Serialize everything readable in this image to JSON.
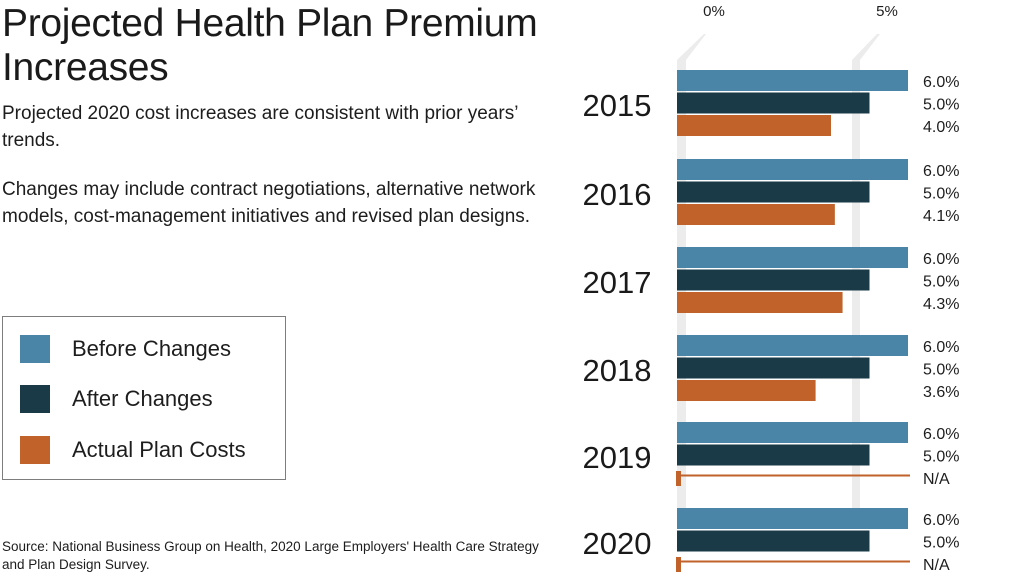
{
  "header": {
    "title": "Projected Health Plan Premium Increases",
    "para1": "Projected 2020 cost increases are consistent with prior years’ trends.",
    "para2": "Changes may include contract negotiations, alternative network models, cost-management initiatives and revised plan designs."
  },
  "legend": {
    "items": [
      {
        "label": "Before Changes",
        "color": "#4a84a6"
      },
      {
        "label": "After Changes",
        "color": "#1a3a47"
      },
      {
        "label": "Actual Plan Costs",
        "color": "#c0622a"
      }
    ]
  },
  "source": "Source: National Business Group on Health, 2020 Large Employers' Health Care Strategy and Plan Design Survey.",
  "chart_data": {
    "type": "bar",
    "orientation": "horizontal",
    "categories": [
      "2015",
      "2016",
      "2017",
      "2018",
      "2019",
      "2020"
    ],
    "x_ticks": [
      "0%",
      "5%"
    ],
    "xlim": [
      0,
      6
    ],
    "series": [
      {
        "name": "Before Changes",
        "color": "#4a84a6",
        "values": [
          6.0,
          6.0,
          6.0,
          6.0,
          6.0,
          6.0
        ],
        "labels": [
          "6.0%",
          "6.0%",
          "6.0%",
          "6.0%",
          "6.0%",
          "6.0%"
        ]
      },
      {
        "name": "After Changes",
        "color": "#1a3a47",
        "values": [
          5.0,
          5.0,
          5.0,
          5.0,
          5.0,
          5.0
        ],
        "labels": [
          "5.0%",
          "5.0%",
          "5.0%",
          "5.0%",
          "5.0%",
          "5.0%"
        ]
      },
      {
        "name": "Actual Plan Costs",
        "color": "#c0622a",
        "values": [
          4.0,
          4.1,
          4.3,
          3.6,
          null,
          null
        ],
        "labels": [
          "4.0%",
          "4.1%",
          "4.3%",
          "3.6%",
          "N/A",
          "N/A"
        ]
      }
    ]
  }
}
